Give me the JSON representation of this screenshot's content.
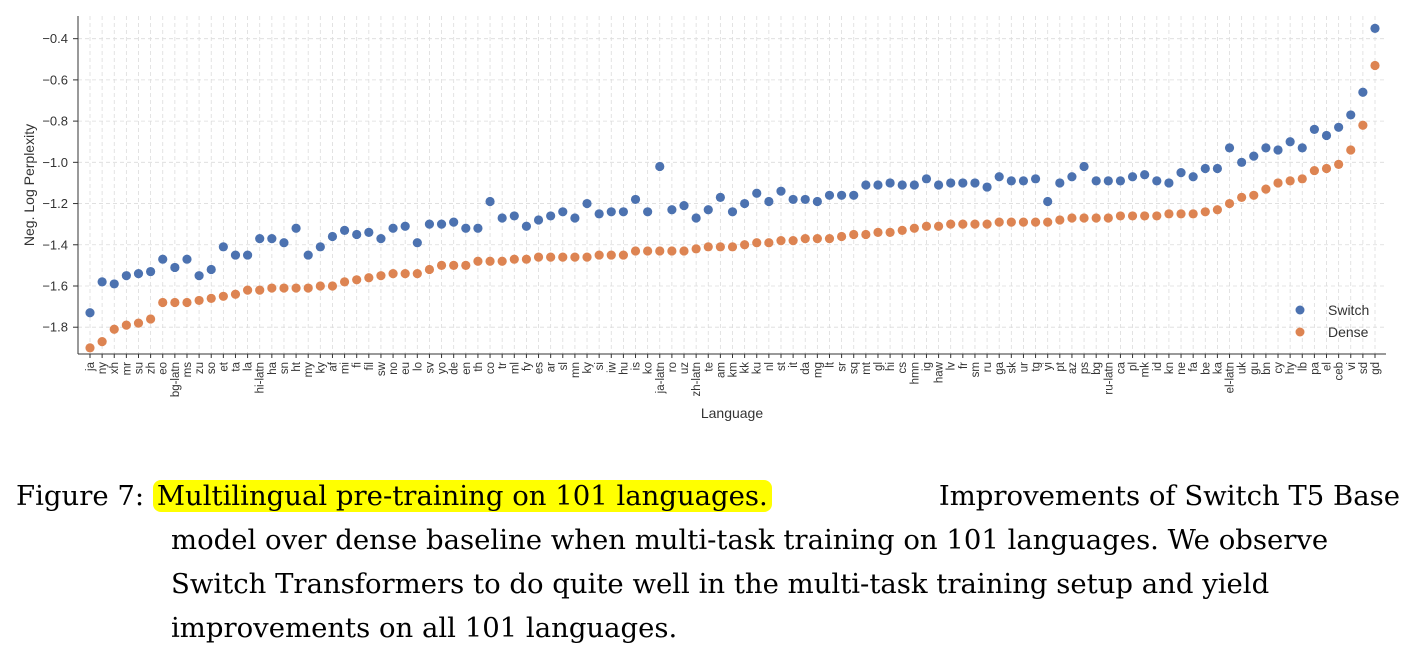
{
  "chart_data": {
    "type": "scatter",
    "xlabel": "Language",
    "ylabel": "Neg. Log Perplexity",
    "ylim": [
      -1.93,
      -0.29
    ],
    "yticks": [
      -1.8,
      -1.6,
      -1.4,
      -1.2,
      -1.0,
      -0.8,
      -0.6,
      -0.4
    ],
    "grid": true,
    "legend_position": "bottom-right",
    "categories": [
      "ja",
      "ny",
      "xh",
      "mr",
      "su",
      "zh",
      "eo",
      "bg-latn",
      "ms",
      "zu",
      "so",
      "et",
      "ta",
      "la",
      "hi-latn",
      "ha",
      "sn",
      "ht",
      "my",
      "ky",
      "af",
      "mi",
      "fi",
      "fil",
      "sw",
      "no",
      "eu",
      "lo",
      "sv",
      "yo",
      "de",
      "en",
      "th",
      "co",
      "tr",
      "ml",
      "fy",
      "es",
      "ar",
      "sl",
      "mn",
      "ky",
      "si",
      "iw",
      "hu",
      "is",
      "ko",
      "ja-latn",
      "ro",
      "uz",
      "zh-latn",
      "te",
      "am",
      "km",
      "kk",
      "ku",
      "nl",
      "st",
      "it",
      "da",
      "mg",
      "lt",
      "sr",
      "sq",
      "mt",
      "gl",
      "hi",
      "cs",
      "hmn",
      "ig",
      "haw",
      "lv",
      "fr",
      "sm",
      "ru",
      "ga",
      "sk",
      "ur",
      "tg",
      "yi",
      "pt",
      "az",
      "ps",
      "bg",
      "ru-latn",
      "ca",
      "pl",
      "mk",
      "id",
      "kn",
      "ne",
      "fa",
      "be",
      "ka",
      "el-latn",
      "uk",
      "gu",
      "bn",
      "cy",
      "hy",
      "lb",
      "pa",
      "el",
      "ceb",
      "vi",
      "sd",
      "gd"
    ],
    "series": [
      {
        "name": "Switch",
        "color": "#4c72b0",
        "values": [
          -1.73,
          -1.58,
          -1.59,
          -1.55,
          -1.54,
          -1.53,
          -1.47,
          -1.51,
          -1.47,
          -1.55,
          -1.52,
          -1.41,
          -1.45,
          -1.45,
          -1.37,
          -1.37,
          -1.39,
          -1.32,
          -1.45,
          -1.41,
          -1.36,
          -1.33,
          -1.35,
          -1.34,
          -1.37,
          -1.32,
          -1.31,
          -1.39,
          -1.3,
          -1.3,
          -1.29,
          -1.32,
          -1.32,
          -1.19,
          -1.27,
          -1.26,
          -1.31,
          -1.28,
          -1.26,
          -1.24,
          -1.27,
          -1.2,
          -1.25,
          -1.24,
          -1.24,
          -1.18,
          -1.24,
          -1.02,
          -1.23,
          -1.21,
          -1.27,
          -1.23,
          -1.17,
          -1.24,
          -1.2,
          -1.15,
          -1.19,
          -1.14,
          -1.18,
          -1.18,
          -1.19,
          -1.16,
          -1.16,
          -1.16,
          -1.11,
          -1.11,
          -1.1,
          -1.11,
          -1.11,
          -1.08,
          -1.11,
          -1.1,
          -1.1,
          -1.1,
          -1.12,
          -1.07,
          -1.09,
          -1.09,
          -1.08,
          -1.19,
          -1.1,
          -1.07,
          -1.02,
          -1.09,
          -1.09,
          -1.09,
          -1.07,
          -1.06,
          -1.09,
          -1.1,
          -1.05,
          -1.07,
          -1.03,
          -1.03,
          -0.93,
          -1.0,
          -0.97,
          -0.93,
          -0.94,
          -0.9,
          -0.93,
          -0.84,
          -0.87,
          -0.83,
          -0.77,
          -0.66,
          -0.35
        ]
      },
      {
        "name": "Dense",
        "color": "#dd8452",
        "values": [
          -1.9,
          -1.87,
          -1.81,
          -1.79,
          -1.78,
          -1.76,
          -1.68,
          -1.68,
          -1.68,
          -1.67,
          -1.66,
          -1.65,
          -1.64,
          -1.62,
          -1.62,
          -1.61,
          -1.61,
          -1.61,
          -1.61,
          -1.6,
          -1.6,
          -1.58,
          -1.57,
          -1.56,
          -1.55,
          -1.54,
          -1.54,
          -1.54,
          -1.52,
          -1.5,
          -1.5,
          -1.5,
          -1.48,
          -1.48,
          -1.48,
          -1.47,
          -1.47,
          -1.46,
          -1.46,
          -1.46,
          -1.46,
          -1.46,
          -1.45,
          -1.45,
          -1.45,
          -1.43,
          -1.43,
          -1.43,
          -1.43,
          -1.43,
          -1.42,
          -1.41,
          -1.41,
          -1.41,
          -1.4,
          -1.39,
          -1.39,
          -1.38,
          -1.38,
          -1.37,
          -1.37,
          -1.37,
          -1.36,
          -1.35,
          -1.35,
          -1.34,
          -1.34,
          -1.33,
          -1.32,
          -1.31,
          -1.31,
          -1.3,
          -1.3,
          -1.3,
          -1.3,
          -1.29,
          -1.29,
          -1.29,
          -1.29,
          -1.29,
          -1.28,
          -1.27,
          -1.27,
          -1.27,
          -1.27,
          -1.26,
          -1.26,
          -1.26,
          -1.26,
          -1.25,
          -1.25,
          -1.25,
          -1.24,
          -1.23,
          -1.2,
          -1.17,
          -1.16,
          -1.13,
          -1.1,
          -1.09,
          -1.08,
          -1.04,
          -1.03,
          -1.01,
          -0.94,
          -0.82,
          -0.53
        ]
      }
    ]
  },
  "caption": {
    "label": "Figure 7:",
    "highlight": "Multilingual pre-training on 101 languages.",
    "line1_rest": "Improvements of Switch T5 Base",
    "line2": "model over dense baseline when multi-task training on 101 languages. We observe",
    "line3": "Switch Transformers to do quite well in the multi-task training setup and yield",
    "line4": "improvements on all 101 languages."
  }
}
